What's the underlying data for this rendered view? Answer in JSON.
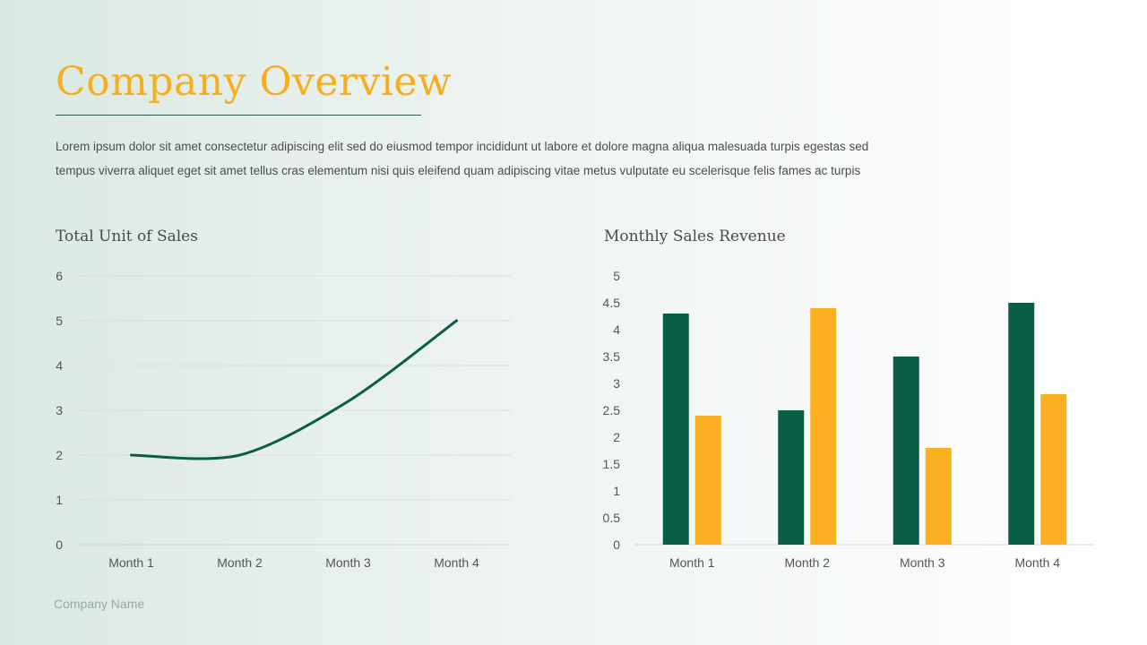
{
  "slide": {
    "title": "Company Overview",
    "description": [
      "Lorem ipsum dolor sit amet consectetur adipiscing elit sed do  eiusmod tempor incididunt ut labore et dolore magna aliqua malesuada turpis egestas sed",
      "tempus viverra aliquet eget sit amet tellus cras elementum nisi quis eleifend quam adipiscing vitae metus vulputate eu scelerisque felis fames ac turpis"
    ],
    "footer": "Company Name"
  },
  "colors": {
    "accent": "#f6ae1f",
    "green": "#0a5e45",
    "grid": "#d9dfdc"
  },
  "chart_data": [
    {
      "type": "line",
      "title": "Total Unit of Sales",
      "categories": [
        "Month 1",
        "Month 2",
        "Month 3",
        "Month 4"
      ],
      "series": [
        {
          "values": [
            2,
            2,
            3.2,
            5
          ],
          "color": "#0a5e45"
        }
      ],
      "ylim": [
        0,
        6
      ],
      "yticks": [
        0,
        1,
        2,
        3,
        4,
        5,
        6
      ],
      "grid": true,
      "smooth": true
    },
    {
      "type": "bar",
      "title": "Monthly Sales Revenue",
      "categories": [
        "Month 1",
        "Month 2",
        "Month 3",
        "Month 4"
      ],
      "series": [
        {
          "values": [
            4.3,
            2.5,
            3.5,
            4.5
          ],
          "color": "#0a5e45"
        },
        {
          "values": [
            2.4,
            4.4,
            1.8,
            2.8
          ],
          "color": "#fbb021"
        }
      ],
      "ylim": [
        0,
        5
      ],
      "yticks": [
        0,
        0.5,
        1,
        1.5,
        2,
        2.5,
        3,
        3.5,
        4,
        4.5,
        5
      ],
      "grid": false
    }
  ]
}
